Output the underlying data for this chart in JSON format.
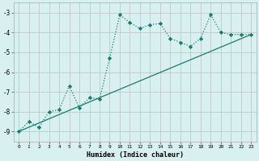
{
  "xlabel": "Humidex (Indice chaleur)",
  "bg_color": "#d8f0f0",
  "line_color": "#1a7a6e",
  "grid_color": "#c0c8c8",
  "xlim": [
    -0.5,
    23.5
  ],
  "ylim": [
    -9.5,
    -2.5
  ],
  "yticks": [
    -9,
    -8,
    -7,
    -6,
    -5,
    -4,
    -3
  ],
  "xticks": [
    0,
    1,
    2,
    3,
    4,
    5,
    6,
    7,
    8,
    9,
    10,
    11,
    12,
    13,
    14,
    15,
    16,
    17,
    18,
    19,
    20,
    21,
    22,
    23
  ],
  "curve1_x": [
    0,
    1,
    2,
    3,
    4,
    5,
    6,
    7,
    8,
    9,
    10,
    11,
    12,
    13,
    14,
    15,
    16,
    17,
    18,
    19,
    20,
    21,
    22,
    23
  ],
  "curve1_y": [
    -9.0,
    -8.5,
    -8.8,
    -8.0,
    -7.9,
    -6.7,
    -7.8,
    -7.3,
    -7.35,
    -5.3,
    -3.1,
    -3.5,
    -3.8,
    -3.6,
    -3.55,
    -4.3,
    -4.5,
    -4.7,
    -4.3,
    -3.1,
    -4.0,
    -4.1,
    -4.1,
    -4.1
  ],
  "curve2_x": [
    0,
    23
  ],
  "curve2_y": [
    -9.0,
    -4.1
  ]
}
